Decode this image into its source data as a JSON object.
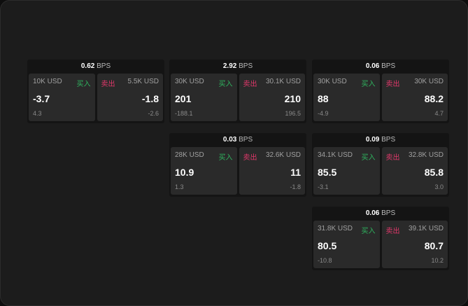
{
  "buy_label": "买入",
  "sell_label": "卖出",
  "unit": "BPS",
  "colors": {
    "buy": "#2fb35e",
    "sell": "#e0386a"
  },
  "cards": [
    {
      "spread": "0.62",
      "bid": {
        "size": "10K USD",
        "price": "-3.7",
        "change": "4.3"
      },
      "ask": {
        "size": "5.5K USD",
        "price": "-1.8",
        "change": "-2.6"
      }
    },
    {
      "spread": "2.92",
      "bid": {
        "size": "30K USD",
        "price": "201",
        "change": "-188.1"
      },
      "ask": {
        "size": "30.1K USD",
        "price": "210",
        "change": "196.5"
      }
    },
    {
      "spread": "0.06",
      "bid": {
        "size": "30K USD",
        "price": "88",
        "change": "-4.9"
      },
      "ask": {
        "size": "30K USD",
        "price": "88.2",
        "change": "4.7"
      }
    },
    {
      "spread": "0.03",
      "bid": {
        "size": "28K USD",
        "price": "10.9",
        "change": "1.3"
      },
      "ask": {
        "size": "32.6K USD",
        "price": "11",
        "change": "-1.8"
      }
    },
    {
      "spread": "0.09",
      "bid": {
        "size": "34.1K USD",
        "price": "85.5",
        "change": "-3.1"
      },
      "ask": {
        "size": "32.8K USD",
        "price": "85.8",
        "change": "3.0"
      }
    },
    {
      "spread": "0.06",
      "bid": {
        "size": "31.8K USD",
        "price": "80.5",
        "change": "-10.8"
      },
      "ask": {
        "size": "39.1K USD",
        "price": "80.7",
        "change": "10.2"
      }
    }
  ]
}
